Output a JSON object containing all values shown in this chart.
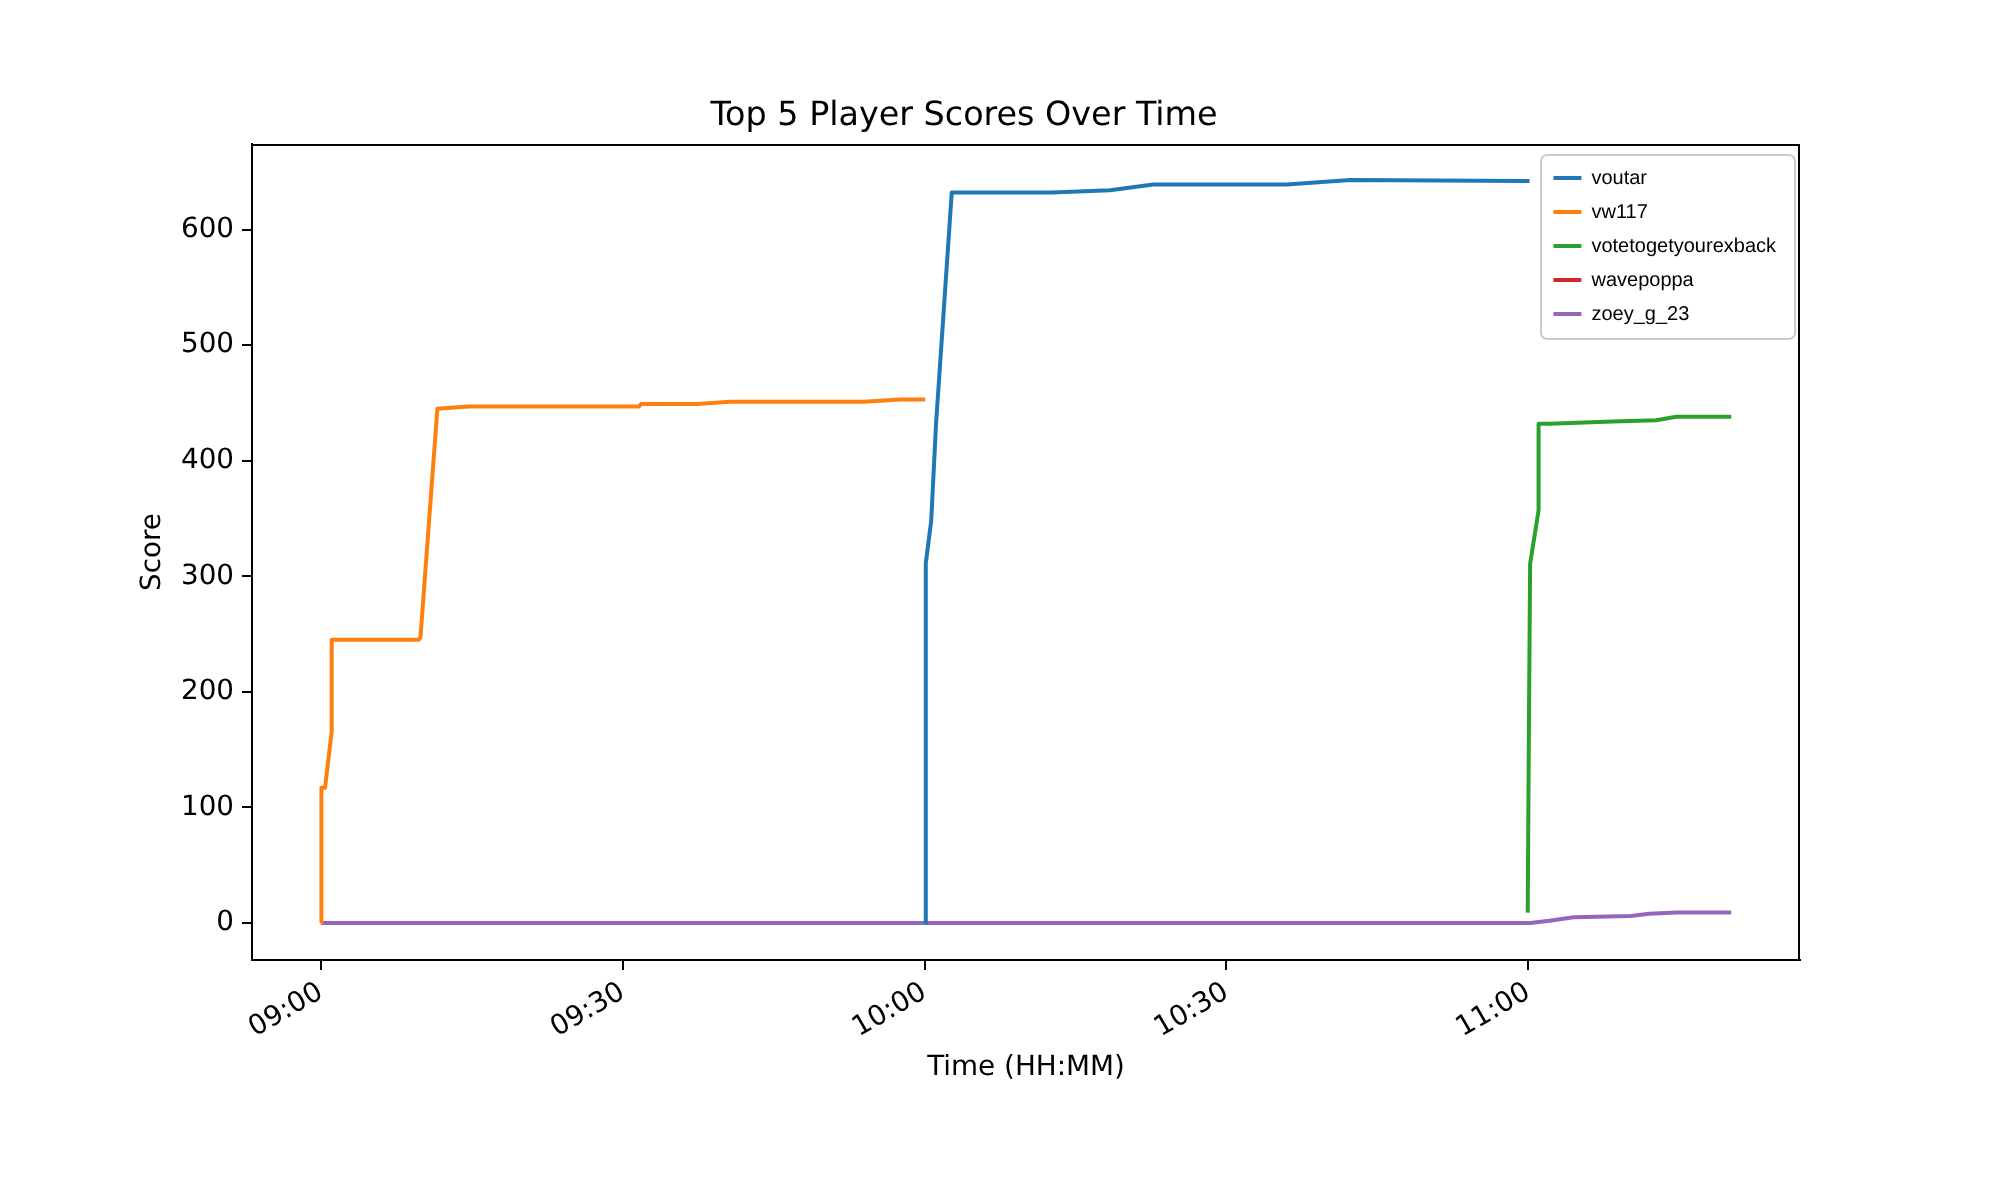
{
  "chart_data": {
    "type": "line",
    "title": "Top 5 Player Scores Over Time",
    "xlabel": "Time (HH:MM)",
    "ylabel": "Score",
    "xlim": [
      8.886,
      11.45
    ],
    "xticks": [
      {
        "value": 9,
        "label": "09:00"
      },
      {
        "value": 9.5,
        "label": "09:30"
      },
      {
        "value": 10,
        "label": "10:00"
      },
      {
        "value": 10.5,
        "label": "10:30"
      },
      {
        "value": 11,
        "label": "11:00"
      }
    ],
    "ylim": [
      -32,
      674
    ],
    "yticks": [
      0,
      100,
      200,
      300,
      400,
      500,
      600
    ],
    "grid": false,
    "legend": "top right",
    "series": [
      {
        "name": "voutar",
        "color": "#1f77b4",
        "x": [
          10.0,
          10.002,
          10.011,
          10.019,
          10.045,
          10.211,
          10.307,
          10.379,
          10.6,
          10.705,
          11.002
        ],
        "values": [
          0,
          311,
          348,
          432,
          632,
          632,
          634,
          639,
          639,
          643,
          642
        ]
      },
      {
        "name": "vw117",
        "color": "#ff7f0e",
        "x": [
          9.0,
          9.001,
          9.007,
          9.018,
          9.018,
          9.162,
          9.165,
          9.193,
          9.244,
          9.527,
          9.53,
          9.623,
          9.678,
          9.899,
          9.96,
          10.001
        ],
        "values": [
          0,
          117,
          117,
          166,
          245,
          245,
          247,
          445,
          447,
          447,
          449,
          449,
          451,
          451,
          453,
          453
        ]
      },
      {
        "name": "votetogetyourexback",
        "color": "#2ca02c",
        "x": [
          10.999,
          11.001,
          11.003,
          11.017,
          11.017,
          11.035,
          11.14,
          11.212,
          11.245,
          11.336
        ],
        "values": [
          9,
          170,
          311,
          357,
          432,
          432,
          434,
          435,
          438,
          438
        ]
      },
      {
        "name": "wavepoppa",
        "color": "#d62728"
      },
      {
        "name": "zoey_g_23",
        "color": "#9467bd",
        "x": [
          9.0,
          11.003,
          11.035,
          11.075,
          11.17,
          11.2,
          11.245,
          11.336
        ],
        "values": [
          0,
          0,
          2,
          5,
          6,
          8,
          9,
          9
        ]
      }
    ]
  }
}
